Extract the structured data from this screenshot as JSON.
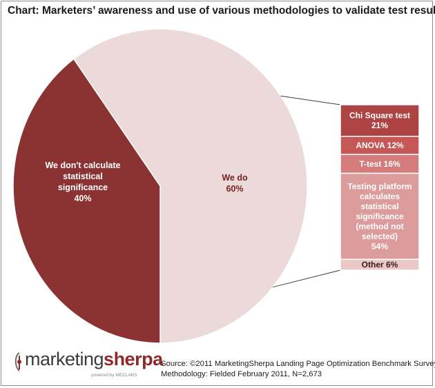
{
  "chart_data": {
    "type": "pie",
    "title": "Chart: Marketers’ awareness and use of various methodologies to validate test results",
    "slices": [
      {
        "label_lines": [
          "We do",
          "60%"
        ],
        "value": 60,
        "color": "#ecdada"
      },
      {
        "label_lines": [
          "We don't calculate",
          "statistical",
          "significance",
          "40%"
        ],
        "value": 40,
        "color": "#8b3333"
      }
    ],
    "breakdown": {
      "of": "We do",
      "segments": [
        {
          "label_lines": [
            "Chi Square test",
            "21%"
          ],
          "value": 21,
          "color": "#ad4343",
          "text_color": "#ffffff"
        },
        {
          "label_lines": [
            "ANOVA 12%"
          ],
          "value": 12,
          "color": "#c55757",
          "text_color": "#ffffff"
        },
        {
          "label_lines": [
            "T-test 16%"
          ],
          "value": 16,
          "color": "#d47b7b",
          "text_color": "#ffffff"
        },
        {
          "label_lines": [
            "Testing platform",
            "calculates",
            "statistical",
            "significance",
            "(method not",
            "selected)",
            "54%"
          ],
          "value": 54,
          "color": "#dc9c9c",
          "text_color": "#ffffff"
        },
        {
          "label_lines": [
            "Other 6%"
          ],
          "value": 6,
          "color": "#ebc7c7",
          "text_color": "#3a1a1a"
        }
      ]
    }
  },
  "logo": {
    "word1": "marketing",
    "word2": "sherpa",
    "powered_by": "powered by MECLABS"
  },
  "source": {
    "line1": "Source: ©2011 MarketingSherpa Landing Page Optimization Benchmark Survey",
    "line2": "Methodology: Fielded February 2011, N=2,673"
  },
  "colors": {
    "pie_edge": "#ffffff",
    "connector": "#3a3a3a",
    "box_border": "#ffffff",
    "slice_dark_text": "#ffffff",
    "slice_light_text": "#7a2020"
  }
}
